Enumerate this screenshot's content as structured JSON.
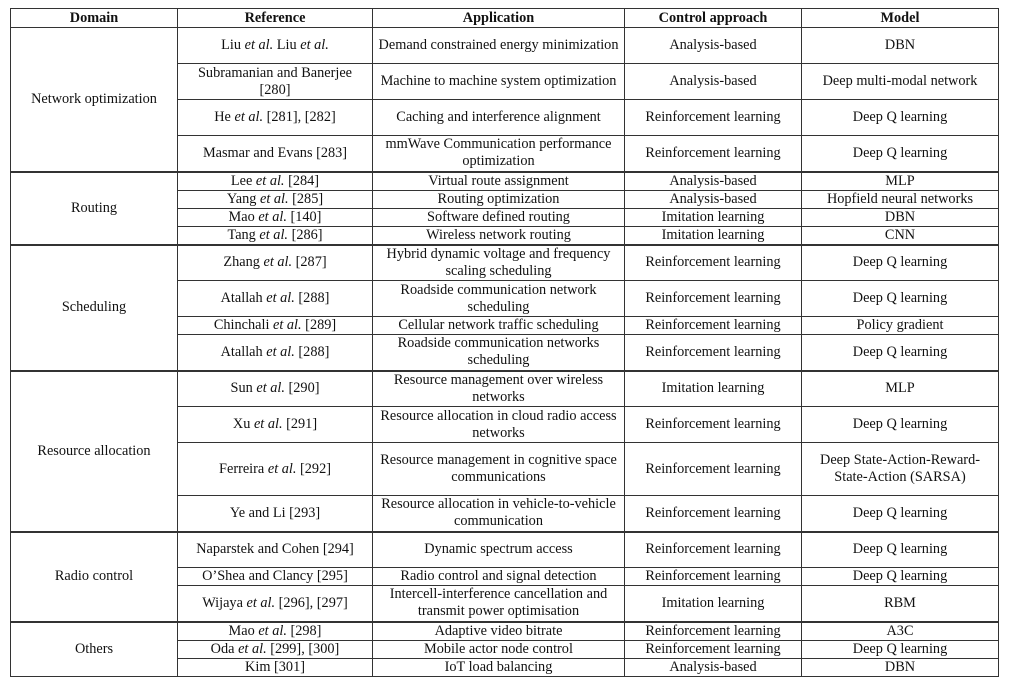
{
  "headers": [
    "Domain",
    "Reference",
    "Application",
    "Control approach",
    "Model"
  ],
  "groups": [
    {
      "domain": "Network optimization",
      "rows": [
        {
          "reference": "Liu et al. Liu et al.",
          "application": "Demand constrained energy minimization",
          "control": "Analysis-based",
          "model": "DBN",
          "lines": 2
        },
        {
          "reference": "Subramanian and Banerjee [280]",
          "application": "Machine to machine system optimization",
          "control": "Analysis-based",
          "model": "Deep multi-modal network",
          "lines": 2
        },
        {
          "reference": "He et al. [281], [282]",
          "application": "Caching and interference alignment",
          "control": "Reinforcement learning",
          "model": "Deep Q learning",
          "lines": 2
        },
        {
          "reference": "Masmar and Evans [283]",
          "application": "mmWave Communication performance optimization",
          "control": "Reinforcement learning",
          "model": "Deep Q learning",
          "lines": 2
        }
      ]
    },
    {
      "domain": "Routing",
      "rows": [
        {
          "reference": "Lee et al. [284]",
          "application": "Virtual route assignment",
          "control": "Analysis-based",
          "model": "MLP",
          "lines": 1
        },
        {
          "reference": "Yang et al. [285]",
          "application": "Routing optimization",
          "control": "Analysis-based",
          "model": "Hopfield neural networks",
          "lines": 1
        },
        {
          "reference": "Mao et al. [140]",
          "application": "Software defined routing",
          "control": "Imitation learning",
          "model": "DBN",
          "lines": 1
        },
        {
          "reference": "Tang et al. [286]",
          "application": "Wireless network routing",
          "control": "Imitation learning",
          "model": "CNN",
          "lines": 1
        }
      ]
    },
    {
      "domain": "Scheduling",
      "rows": [
        {
          "reference": "Zhang et al. [287]",
          "application": "Hybrid dynamic voltage and frequency scaling scheduling",
          "control": "Reinforcement learning",
          "model": "Deep Q learning",
          "lines": 2
        },
        {
          "reference": "Atallah et al. [288]",
          "application": "Roadside communication network scheduling",
          "control": "Reinforcement learning",
          "model": "Deep Q learning",
          "lines": 2
        },
        {
          "reference": "Chinchali et al. [289]",
          "application": "Cellular network traffic scheduling",
          "control": "Reinforcement learning",
          "model": "Policy gradient",
          "lines": 1
        },
        {
          "reference": "Atallah et al. [288]",
          "application": "Roadside communication networks scheduling",
          "control": "Reinforcement learning",
          "model": "Deep Q learning",
          "lines": 2
        }
      ]
    },
    {
      "domain": "Resource allocation",
      "rows": [
        {
          "reference": "Sun et al. [290]",
          "application": "Resource management over wireless networks",
          "control": "Imitation learning",
          "model": "MLP",
          "lines": 2
        },
        {
          "reference": "Xu et al. [291]",
          "application": "Resource allocation in cloud radio access networks",
          "control": "Reinforcement learning",
          "model": "Deep Q learning",
          "lines": 2
        },
        {
          "reference": "Ferreira et al. [292]",
          "application": "Resource management in cognitive space communications",
          "control": "Reinforcement learning",
          "model": "Deep State-Action-Reward-State-Action (SARSA)",
          "lines": 3
        },
        {
          "reference": "Ye and Li [293]",
          "application": "Resource allocation in vehicle-to-vehicle communication",
          "control": "Reinforcement learning",
          "model": "Deep Q learning",
          "lines": 2
        }
      ]
    },
    {
      "domain": "Radio control",
      "rows": [
        {
          "reference": "Naparstek and Cohen [294]",
          "application": "Dynamic spectrum access",
          "control": "Reinforcement learning",
          "model": "Deep Q learning",
          "lines": 2
        },
        {
          "reference": "O’Shea and Clancy [295]",
          "application": "Radio control and signal detection",
          "control": "Reinforcement learning",
          "model": "Deep Q learning",
          "lines": 1
        },
        {
          "reference": "Wijaya et al. [296], [297]",
          "application": "Intercell-interference cancellation and transmit power optimisation",
          "control": "Imitation learning",
          "model": "RBM",
          "lines": 2
        }
      ]
    },
    {
      "domain": "Others",
      "rows": [
        {
          "reference": "Mao et al. [298]",
          "application": "Adaptive video bitrate",
          "control": "Reinforcement learning",
          "model": "A3C",
          "lines": 1
        },
        {
          "reference": "Oda et al. [299], [300]",
          "application": "Mobile actor node control",
          "control": "Reinforcement learning",
          "model": "Deep Q learning",
          "lines": 1
        },
        {
          "reference": "Kim [301]",
          "application": "IoT load balancing",
          "control": "Analysis-based",
          "model": "DBN",
          "lines": 1
        }
      ]
    }
  ]
}
